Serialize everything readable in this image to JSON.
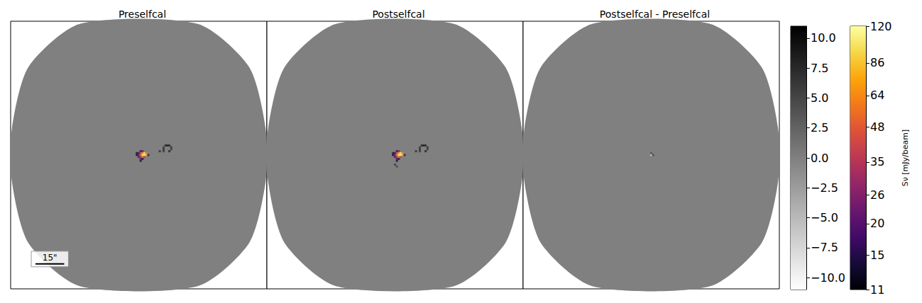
{
  "chart_data": [
    {
      "type": "image",
      "title": "Preselfcal",
      "xlim": [
        -67,
        67
      ],
      "ylim": [
        -70,
        70
      ],
      "tick_labels": false,
      "scale_bar": {
        "length": 15,
        "label": "15\""
      },
      "cells": [
        [
          1,
          2,
          16
        ],
        [
          2,
          2,
          22
        ],
        [
          0,
          1,
          18
        ],
        [
          1,
          1,
          40
        ],
        [
          2,
          1,
          70
        ],
        [
          3,
          1,
          100
        ],
        [
          4,
          1,
          60
        ],
        [
          0,
          0,
          25
        ],
        [
          1,
          0,
          50
        ],
        [
          2,
          0,
          110
        ],
        [
          3,
          0,
          120
        ],
        [
          4,
          0,
          80
        ],
        [
          0,
          -1,
          20
        ],
        [
          1,
          -1,
          35
        ],
        [
          2,
          -1,
          60
        ],
        [
          3,
          -1,
          40
        ],
        [
          1,
          -2,
          22
        ],
        [
          2,
          -2,
          15
        ],
        [
          1,
          -3,
          14
        ],
        [
          -1,
          0,
          13
        ],
        [
          -1,
          1,
          9
        ],
        [
          5,
          0,
          8
        ],
        [
          11,
          2,
          7
        ],
        [
          13,
          4,
          6
        ],
        [
          14,
          5,
          8
        ],
        [
          15,
          5,
          9
        ],
        [
          16,
          5,
          8
        ],
        [
          17,
          4,
          7
        ],
        [
          17,
          3,
          6
        ],
        [
          16,
          2,
          8
        ],
        [
          13,
          3,
          7
        ],
        [
          13,
          2,
          6
        ]
      ]
    },
    {
      "type": "image",
      "title": "Postselfcal",
      "xlim": [
        -67,
        67
      ],
      "ylim": [
        -70,
        70
      ],
      "tick_labels": false,
      "cells": [
        [
          1,
          2,
          16
        ],
        [
          2,
          2,
          24
        ],
        [
          0,
          1,
          18
        ],
        [
          1,
          1,
          42
        ],
        [
          2,
          1,
          75
        ],
        [
          3,
          1,
          105
        ],
        [
          4,
          1,
          62
        ],
        [
          0,
          0,
          26
        ],
        [
          1,
          0,
          52
        ],
        [
          2,
          0,
          115
        ],
        [
          3,
          0,
          120
        ],
        [
          4,
          0,
          82
        ],
        [
          0,
          -1,
          20
        ],
        [
          1,
          -1,
          36
        ],
        [
          2,
          -1,
          62
        ],
        [
          3,
          -1,
          42
        ],
        [
          1,
          -2,
          22
        ],
        [
          2,
          -2,
          15
        ],
        [
          1,
          -3,
          14
        ],
        [
          -1,
          0,
          13
        ],
        [
          -1,
          1,
          9
        ],
        [
          5,
          0,
          8
        ],
        [
          0,
          -5,
          6
        ],
        [
          1,
          -6,
          5
        ],
        [
          11,
          2,
          7
        ],
        [
          13,
          4,
          6
        ],
        [
          14,
          5,
          8
        ],
        [
          15,
          5,
          9
        ],
        [
          16,
          5,
          8
        ],
        [
          17,
          4,
          7
        ],
        [
          17,
          3,
          6
        ],
        [
          16,
          2,
          8
        ],
        [
          13,
          3,
          7
        ],
        [
          13,
          2,
          6
        ]
      ]
    },
    {
      "type": "image",
      "title": "Postselfcal - Preselfcal",
      "xlim": [
        -67,
        67
      ],
      "ylim": [
        -70,
        70
      ],
      "tick_labels": false,
      "cells": [
        [
          0,
          0,
          -6
        ],
        [
          1,
          0,
          5
        ],
        [
          0,
          1,
          4
        ]
      ]
    },
    {
      "type": "colorbar",
      "color": "gray_r",
      "ylim": [
        -11,
        11
      ],
      "yticks": [
        {
          "value": -10,
          "label": "−10.0"
        },
        {
          "value": -7.5,
          "label": "−7.5"
        },
        {
          "value": -5,
          "label": "−5.0"
        },
        {
          "value": -2.5,
          "label": "−2.5"
        },
        {
          "value": 0,
          "label": "0.0"
        },
        {
          "value": 2.5,
          "label": "2.5"
        },
        {
          "value": 5,
          "label": "5.0"
        },
        {
          "value": 7.5,
          "label": "7.5"
        },
        {
          "value": 10,
          "label": "10.0"
        }
      ]
    },
    {
      "type": "colorbar",
      "color": "inferno",
      "log": true,
      "ylim": [
        11,
        120
      ],
      "yticks": [
        11,
        15,
        20,
        26,
        35,
        48,
        64,
        86,
        120
      ],
      "label": "Sν [mJy/beam]"
    }
  ]
}
